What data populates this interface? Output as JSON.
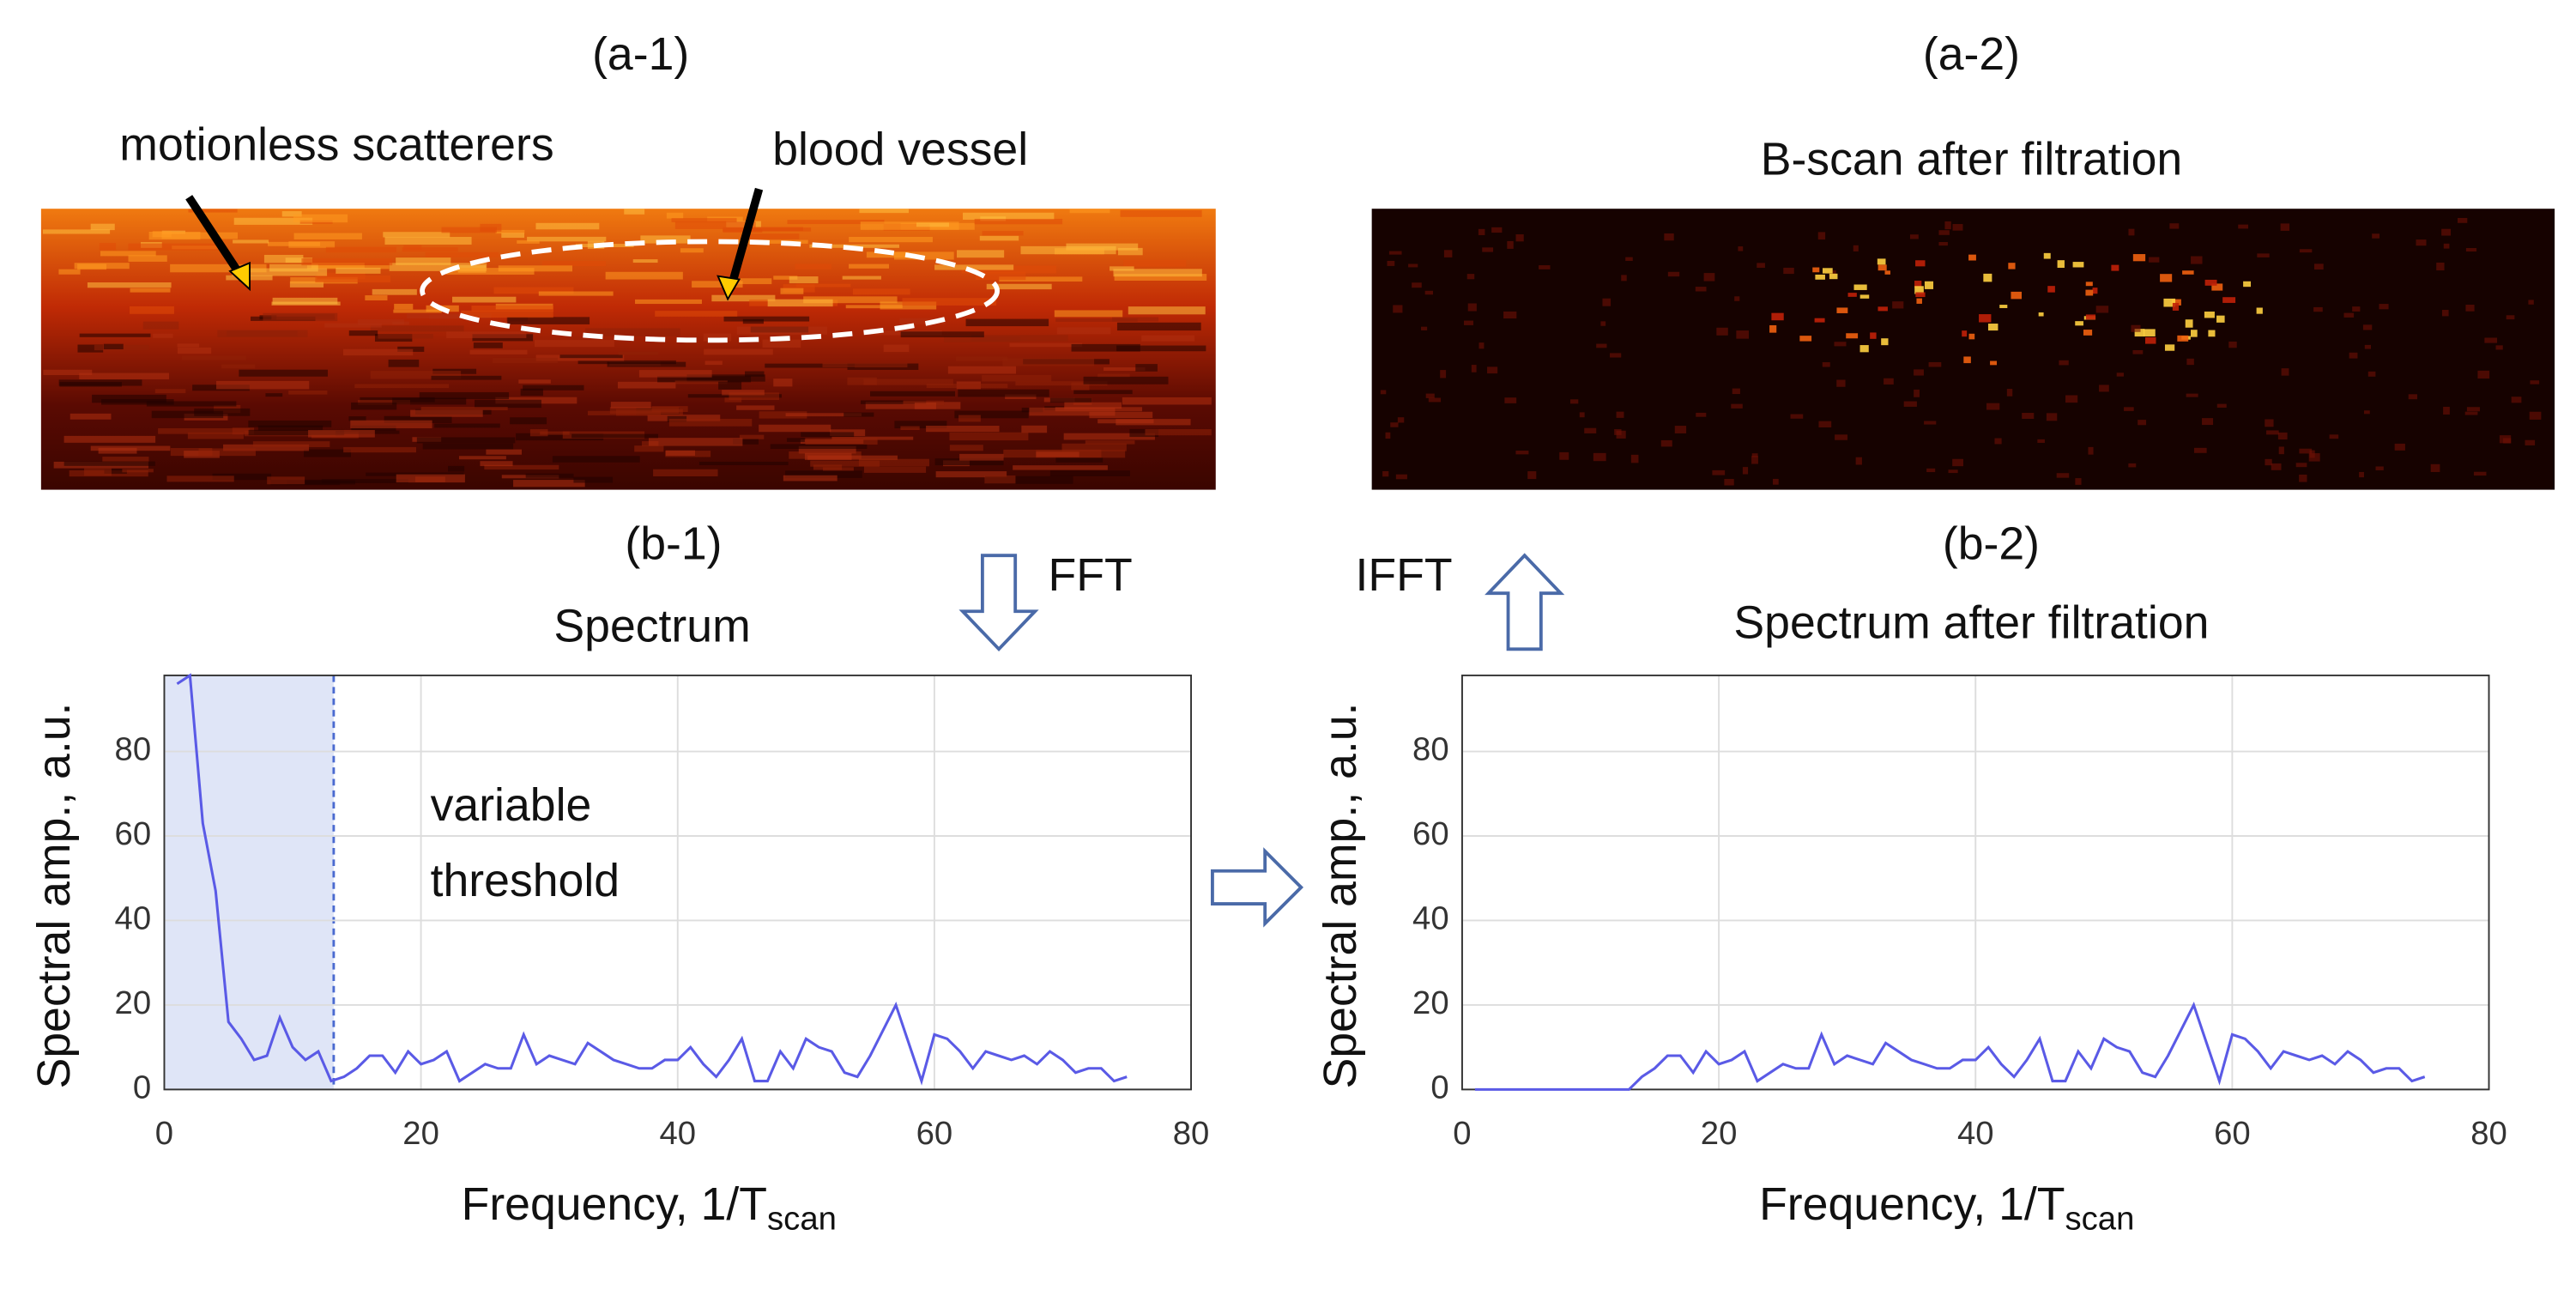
{
  "panels": {
    "a1_label": "(a-1)",
    "a1_annotations": [
      "motionless scatterers",
      "blood vessel"
    ],
    "a2_label": "(a-2)",
    "a2_title": "B-scan after filtration",
    "b1_label": "(b-1)",
    "b2_label": "(b-2)",
    "fft": "FFT",
    "ifft": "IFFT"
  },
  "chart_data": [
    {
      "type": "line",
      "title": "Spectrum",
      "ylabel": "Spectral amp., a.u.",
      "xlabel": {
        "text": "Frequency, 1/T",
        "subscript": "scan"
      },
      "annotation": [
        "variable",
        "threshold"
      ],
      "threshold": 13.2,
      "xlim": [
        0,
        80
      ],
      "xticks": [
        0,
        20,
        40,
        60,
        80
      ],
      "ylim": [
        0,
        98
      ],
      "yticks": [
        0,
        20,
        40,
        60,
        80
      ],
      "grid": true,
      "x": [
        1,
        2,
        3,
        4,
        5,
        6,
        7,
        8,
        9,
        10,
        11,
        12,
        13,
        14,
        15,
        16,
        17,
        18,
        19,
        20,
        21,
        22,
        23,
        24,
        25,
        26,
        27,
        28,
        29,
        30,
        31,
        32,
        33,
        34,
        35,
        36,
        37,
        38,
        39,
        40,
        41,
        42,
        43,
        44,
        45,
        46,
        47,
        48,
        49,
        50,
        51,
        52,
        53,
        54,
        55,
        56,
        57,
        58,
        59,
        60,
        61,
        62,
        63,
        64,
        65,
        66,
        67,
        68,
        69,
        70,
        71,
        72,
        73,
        74,
        75
      ],
      "series": [
        {
          "color": "#5a5ae6",
          "values": [
            96,
            98,
            63,
            47,
            16,
            12,
            7,
            8,
            17,
            10,
            7,
            9,
            2,
            3,
            5,
            8,
            8,
            4,
            9,
            6,
            7,
            9,
            2,
            4,
            6,
            5,
            5,
            13,
            6,
            8,
            7,
            6,
            11,
            9,
            7,
            6,
            5,
            5,
            7,
            7,
            10,
            6,
            3,
            7,
            12,
            2,
            2,
            9,
            5,
            12,
            10,
            9,
            4,
            3,
            8,
            14,
            20,
            11,
            2,
            13,
            12,
            9,
            5,
            9,
            8,
            7,
            8,
            6,
            9,
            7,
            4,
            5,
            5,
            2,
            3
          ]
        }
      ]
    },
    {
      "type": "line",
      "title": "Spectrum after filtration",
      "ylabel": "Spectral amp., a.u.",
      "xlabel": {
        "text": "Frequency, 1/T",
        "subscript": "scan"
      },
      "xlim": [
        0,
        80
      ],
      "xticks": [
        0,
        20,
        40,
        60,
        80
      ],
      "ylim": [
        0,
        98
      ],
      "yticks": [
        0,
        20,
        40,
        60,
        80
      ],
      "grid": true,
      "x": [
        1,
        2,
        3,
        4,
        5,
        6,
        7,
        8,
        9,
        10,
        11,
        12,
        13,
        14,
        15,
        16,
        17,
        18,
        19,
        20,
        21,
        22,
        23,
        24,
        25,
        26,
        27,
        28,
        29,
        30,
        31,
        32,
        33,
        34,
        35,
        36,
        37,
        38,
        39,
        40,
        41,
        42,
        43,
        44,
        45,
        46,
        47,
        48,
        49,
        50,
        51,
        52,
        53,
        54,
        55,
        56,
        57,
        58,
        59,
        60,
        61,
        62,
        63,
        64,
        65,
        66,
        67,
        68,
        69,
        70,
        71,
        72,
        73,
        74,
        75
      ],
      "series": [
        {
          "color": "#5a5ae6",
          "values": [
            0,
            0,
            0,
            0,
            0,
            0,
            0,
            0,
            0,
            0,
            0,
            0,
            0,
            3,
            5,
            8,
            8,
            4,
            9,
            6,
            7,
            9,
            2,
            4,
            6,
            5,
            5,
            13,
            6,
            8,
            7,
            6,
            11,
            9,
            7,
            6,
            5,
            5,
            7,
            7,
            10,
            6,
            3,
            7,
            12,
            2,
            2,
            9,
            5,
            12,
            10,
            9,
            4,
            3,
            8,
            14,
            20,
            11,
            2,
            13,
            12,
            9,
            5,
            9,
            8,
            7,
            8,
            6,
            9,
            7,
            4,
            5,
            5,
            2,
            3
          ]
        }
      ]
    }
  ]
}
